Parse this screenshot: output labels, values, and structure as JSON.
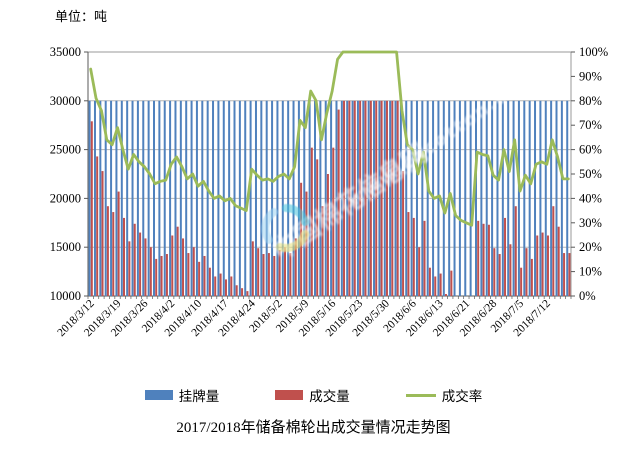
{
  "unit_label": "单位：吨",
  "title": "2017/2018年储备棉轮出成交量情况走势图",
  "watermark": {
    "line1": "中国棉花信息网",
    "line2": "www.cncotton.com"
  },
  "legend": [
    {
      "label": "挂牌量",
      "color": "#4F81BD",
      "type": "bar"
    },
    {
      "label": "成交量",
      "color": "#C0504D",
      "type": "bar"
    },
    {
      "label": "成交率",
      "color": "#9BBB59",
      "type": "line"
    }
  ],
  "chart_data": {
    "type": "combo",
    "title": "2017/2018年储备棉轮出成交量情况走势图",
    "unit": "吨",
    "grid": true,
    "legend_position": "bottom",
    "x_tick_labels": [
      "2018/3/12",
      "2018/3/19",
      "2018/3/26",
      "2018/4/2",
      "2018/4/10",
      "2018/4/17",
      "2018/4/24",
      "2018/5/2",
      "2018/5/9",
      "2018/5/16",
      "2018/5/23",
      "2018/5/30",
      "2018/6/6",
      "2018/6/13",
      "2018/6/21",
      "2018/6/28",
      "2018/7/5",
      "2018/7/12"
    ],
    "days_per_tick": 5,
    "left_axis": {
      "min": 10000,
      "max": 35000,
      "step": 5000,
      "ticks": [
        "10000",
        "15000",
        "20000",
        "25000",
        "30000",
        "35000"
      ]
    },
    "right_axis": {
      "min": 0,
      "max": 100,
      "step": 10,
      "ticks": [
        "0%",
        "10%",
        "20%",
        "30%",
        "40%",
        "50%",
        "60%",
        "70%",
        "80%",
        "90%",
        "100%"
      ]
    },
    "series": [
      {
        "name": "挂牌量",
        "type": "bar",
        "axis": "left",
        "color": "#4F81BD",
        "values": [
          30000,
          30000,
          30000,
          30000,
          30000,
          30000,
          30000,
          30000,
          30000,
          30000,
          30000,
          30000,
          30000,
          30000,
          30000,
          30000,
          30000,
          30000,
          30000,
          30000,
          30000,
          30000,
          30000,
          30000,
          30000,
          30000,
          30000,
          30000,
          30000,
          30000,
          30000,
          30000,
          30000,
          30000,
          30000,
          30000,
          30000,
          30000,
          30000,
          30000,
          30000,
          30000,
          30000,
          30000,
          30000,
          30000,
          30000,
          30000,
          30000,
          30000,
          30000,
          30000,
          30000,
          30000,
          30000,
          30000,
          30000,
          30000,
          30000,
          30000,
          30000,
          30000,
          30000,
          30000,
          30000,
          30000,
          30000,
          30000,
          30000,
          30000,
          30000,
          30000,
          30000,
          30000,
          30000,
          30000,
          30000,
          30000,
          30000,
          30000,
          30000,
          30000,
          30000,
          30000,
          30000,
          30000,
          30000,
          30000,
          30000,
          30000
        ]
      },
      {
        "name": "成交量",
        "type": "bar",
        "axis": "left",
        "color": "#C0504D",
        "values": [
          27900,
          24300,
          22800,
          19200,
          18600,
          20700,
          18000,
          15600,
          17400,
          16500,
          15900,
          15000,
          13800,
          14100,
          14300,
          16200,
          17100,
          15900,
          14400,
          15000,
          13500,
          14100,
          12900,
          12000,
          12300,
          11700,
          12000,
          11100,
          10800,
          10500,
          15600,
          14900,
          14300,
          14400,
          14100,
          14700,
          15000,
          14400,
          15900,
          21600,
          20700,
          25200,
          24000,
          19200,
          22500,
          25200,
          29100,
          30000,
          30000,
          30000,
          30000,
          30000,
          30000,
          30000,
          30000,
          30000,
          30000,
          30000,
          22800,
          18600,
          18000,
          15000,
          17700,
          12900,
          12000,
          12300,
          10200,
          12600,
          9900,
          9300,
          9000,
          8700,
          17700,
          17400,
          17300,
          14900,
          14300,
          18000,
          15300,
          19200,
          12900,
          14900,
          13800,
          16200,
          16500,
          16200,
          19200,
          17100,
          14400,
          14400
        ]
      },
      {
        "name": "成交率",
        "type": "line",
        "axis": "right",
        "color": "#9BBB59",
        "values": [
          93,
          81,
          76,
          64,
          62,
          69,
          60,
          52,
          58,
          55,
          53,
          50,
          46,
          47,
          47.5,
          54,
          57,
          53,
          48,
          50,
          45,
          47,
          43,
          40,
          41,
          39,
          40,
          37,
          36,
          35,
          52,
          49.5,
          47.5,
          48,
          47,
          49,
          50,
          48,
          53,
          72,
          69,
          84,
          80,
          64,
          75,
          84,
          97,
          100,
          100,
          100,
          100,
          100,
          100,
          100,
          100,
          100,
          100,
          100,
          76,
          62,
          60,
          50,
          59,
          43,
          40,
          41,
          34,
          42,
          33,
          31,
          30,
          29,
          59,
          58,
          57.5,
          49.5,
          47.5,
          60,
          51,
          64,
          43,
          49.5,
          46,
          54,
          55,
          54,
          64,
          57,
          48,
          48
        ]
      }
    ]
  }
}
